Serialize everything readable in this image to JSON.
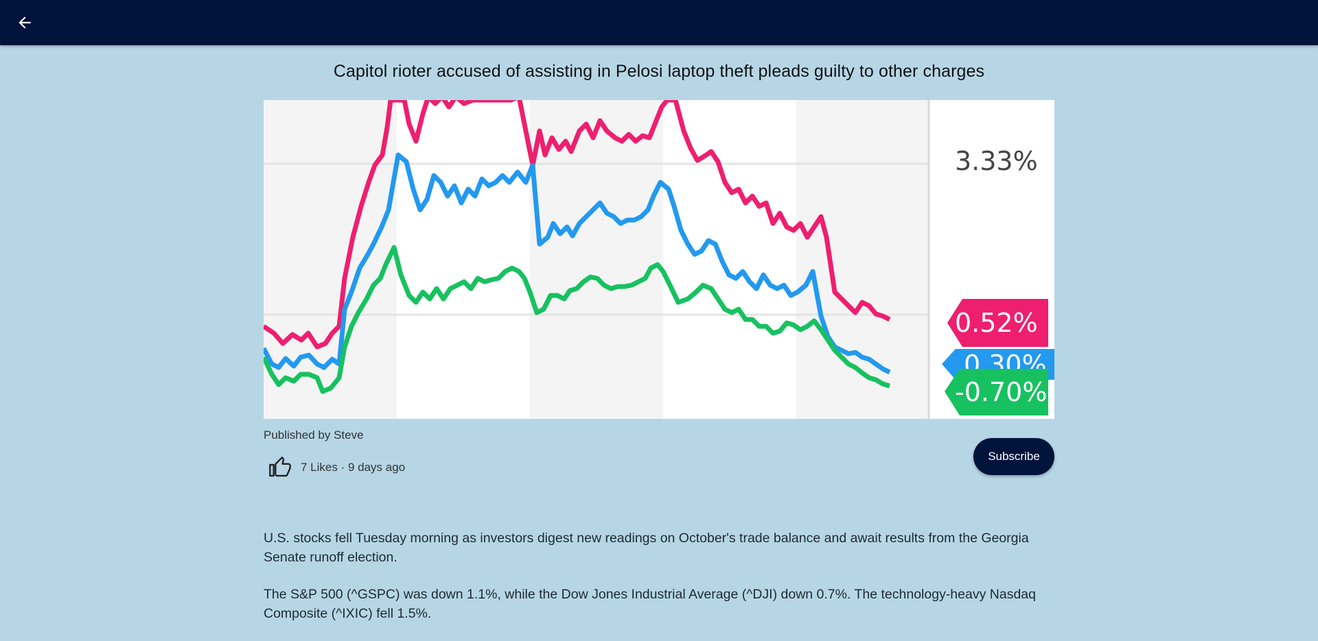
{
  "header": {
    "back_icon": "arrow-left-icon",
    "background": "#00133b"
  },
  "article": {
    "title": "Capitol rioter accused of assisting in Pelosi laptop theft pleads guilty to other charges",
    "publisher": "Published by Steve",
    "likes_meta": "7 Likes · 9 days ago",
    "subscribe_label": "Subscribe",
    "paragraphs": [
      "U.S. stocks fell Tuesday morning as investors digest new readings on October's trade balance and await results from the Georgia Senate runoff election.",
      "The S&P 500 (^GSPC) was down 1.1%, while the Dow Jones Industrial Average (^DJI) down 0.7%. The technology-heavy Nasdaq Composite (^IXIC) fell 1.5%."
    ]
  },
  "hero_image": {
    "top_label": "3.33%",
    "tag_pink": "0.52%",
    "tag_blue": "0.30%",
    "tag_green": "-0.70%",
    "colors": {
      "pink": "#ee1f6f",
      "blue": "#2399ef",
      "green": "#18c160"
    }
  }
}
